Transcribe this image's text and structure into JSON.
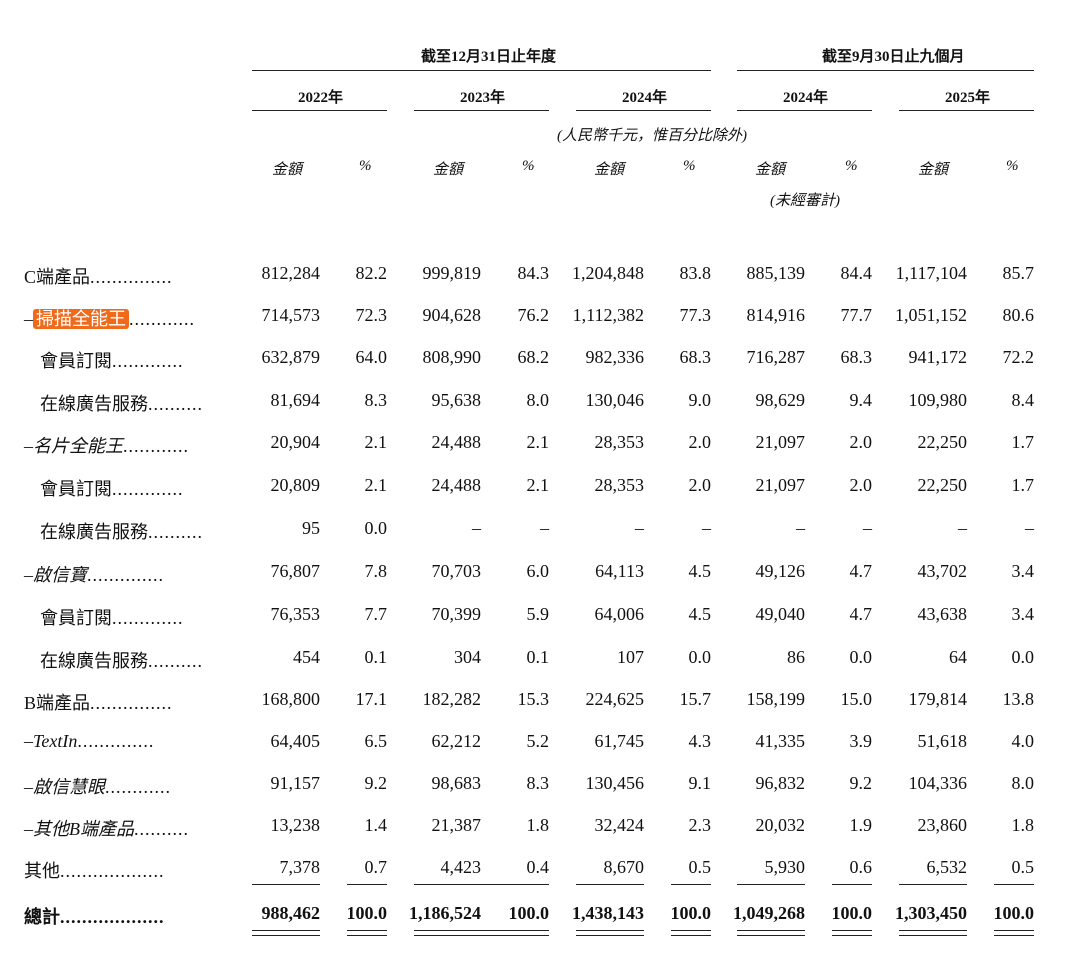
{
  "headers": {
    "group1": "截至12月31日止年度",
    "group2": "截至9月30日止九個月",
    "years": [
      "2022年",
      "2023年",
      "2024年",
      "2024年",
      "2025年"
    ],
    "unit_note": "(人民幣千元，惟百分比除外)",
    "amount_label": "金額",
    "pct_label": "%",
    "unaudited": "(未經審計)"
  },
  "rows": [
    {
      "label": "C端產品",
      "dots": "...............",
      "vals": [
        "812,284",
        "82.2",
        "999,819",
        "84.3",
        "1,204,848",
        "83.8",
        "885,139",
        "84.4",
        "1,117,104",
        "85.7"
      ]
    },
    {
      "label": "掃描全能王",
      "prefix": "–",
      "dots": "............",
      "vals": [
        "714,573",
        "72.3",
        "904,628",
        "76.2",
        "1,112,382",
        "77.3",
        "814,916",
        "77.7",
        "1,051,152",
        "80.6"
      ]
    },
    {
      "label": "會員訂閱",
      "dots": ".............",
      "vals": [
        "632,879",
        "64.0",
        "808,990",
        "68.2",
        "982,336",
        "68.3",
        "716,287",
        "68.3",
        "941,172",
        "72.2"
      ]
    },
    {
      "label": "在線廣告服務",
      "dots": "..........",
      "vals": [
        "81,694",
        "8.3",
        "95,638",
        "8.0",
        "130,046",
        "9.0",
        "98,629",
        "9.4",
        "109,980",
        "8.4"
      ]
    },
    {
      "label": "–名片全能王",
      "dots": "............",
      "vals": [
        "20,904",
        "2.1",
        "24,488",
        "2.1",
        "28,353",
        "2.0",
        "21,097",
        "2.0",
        "22,250",
        "1.7"
      ]
    },
    {
      "label": "會員訂閱",
      "dots": ".............",
      "vals": [
        "20,809",
        "2.1",
        "24,488",
        "2.1",
        "28,353",
        "2.0",
        "21,097",
        "2.0",
        "22,250",
        "1.7"
      ]
    },
    {
      "label": "在線廣告服務",
      "dots": "..........",
      "vals": [
        "95",
        "0.0",
        "–",
        "–",
        "–",
        "–",
        "–",
        "–",
        "–",
        "–"
      ]
    },
    {
      "label": "–啟信寶",
      "dots": "..............",
      "vals": [
        "76,807",
        "7.8",
        "70,703",
        "6.0",
        "64,113",
        "4.5",
        "49,126",
        "4.7",
        "43,702",
        "3.4"
      ]
    },
    {
      "label": "會員訂閱",
      "dots": ".............",
      "vals": [
        "76,353",
        "7.7",
        "70,399",
        "5.9",
        "64,006",
        "4.5",
        "49,040",
        "4.7",
        "43,638",
        "3.4"
      ]
    },
    {
      "label": "在線廣告服務",
      "dots": "..........",
      "vals": [
        "454",
        "0.1",
        "304",
        "0.1",
        "107",
        "0.0",
        "86",
        "0.0",
        "64",
        "0.0"
      ]
    },
    {
      "label": "B端產品",
      "dots": "...............",
      "vals": [
        "168,800",
        "17.1",
        "182,282",
        "15.3",
        "224,625",
        "15.7",
        "158,199",
        "15.0",
        "179,814",
        "13.8"
      ]
    },
    {
      "label": "–TextIn",
      "dots": "..............",
      "vals": [
        "64,405",
        "6.5",
        "62,212",
        "5.2",
        "61,745",
        "4.3",
        "41,335",
        "3.9",
        "51,618",
        "4.0"
      ]
    },
    {
      "label": "–啟信慧眼",
      "dots": "............",
      "vals": [
        "91,157",
        "9.2",
        "98,683",
        "8.3",
        "130,456",
        "9.1",
        "96,832",
        "9.2",
        "104,336",
        "8.0"
      ]
    },
    {
      "label": "–其他B端產品",
      "dots": "..........",
      "vals": [
        "13,238",
        "1.4",
        "21,387",
        "1.8",
        "32,424",
        "2.3",
        "20,032",
        "1.9",
        "23,860",
        "1.8"
      ]
    },
    {
      "label": "其他",
      "dots": "...................",
      "vals": [
        "7,378",
        "0.7",
        "4,423",
        "0.4",
        "8,670",
        "0.5",
        "5,930",
        "0.6",
        "6,532",
        "0.5"
      ]
    },
    {
      "label": "總計",
      "dots": "...................",
      "vals": [
        "988,462",
        "100.0",
        "1,186,524",
        "100.0",
        "1,438,143",
        "100.0",
        "1,049,268",
        "100.0",
        "1,303,450",
        "100.0"
      ]
    }
  ]
}
